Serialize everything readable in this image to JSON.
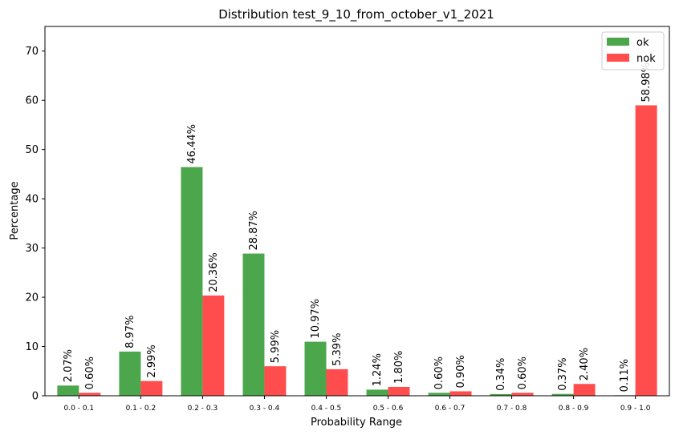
{
  "chart_data": {
    "type": "bar",
    "title": "Distribution test_9_10_from_october_v1_2021",
    "xlabel": "Probability Range",
    "ylabel": "Percentage",
    "ylim": [
      0,
      75
    ],
    "yticks": [
      0,
      10,
      20,
      30,
      40,
      50,
      60,
      70
    ],
    "categories": [
      "0.0 - 0.1",
      "0.1 - 0.2",
      "0.2 - 0.3",
      "0.3 - 0.4",
      "0.4 - 0.5",
      "0.5 - 0.6",
      "0.6 - 0.7",
      "0.7 - 0.8",
      "0.8 - 0.9",
      "0.9 - 1.0"
    ],
    "series": [
      {
        "name": "ok",
        "color": "#4ca64c",
        "values": [
          2.07,
          8.97,
          46.44,
          28.87,
          10.97,
          1.24,
          0.6,
          0.34,
          0.37,
          0.11
        ],
        "labels": [
          "2.07%",
          "8.97%",
          "46.44%",
          "28.87%",
          "10.97%",
          "1.24%",
          "0.60%",
          "0.34%",
          "0.37%",
          "0.11%"
        ]
      },
      {
        "name": "nok",
        "color": "#ff4c4c",
        "values": [
          0.6,
          2.99,
          20.36,
          5.99,
          5.39,
          1.8,
          0.9,
          0.6,
          2.4,
          58.98
        ],
        "labels": [
          "0.60%",
          "2.99%",
          "20.36%",
          "5.99%",
          "5.39%",
          "1.80%",
          "0.90%",
          "0.60%",
          "2.40%",
          "58.98%"
        ]
      }
    ],
    "legend_position": "top-right",
    "grid": false
  }
}
